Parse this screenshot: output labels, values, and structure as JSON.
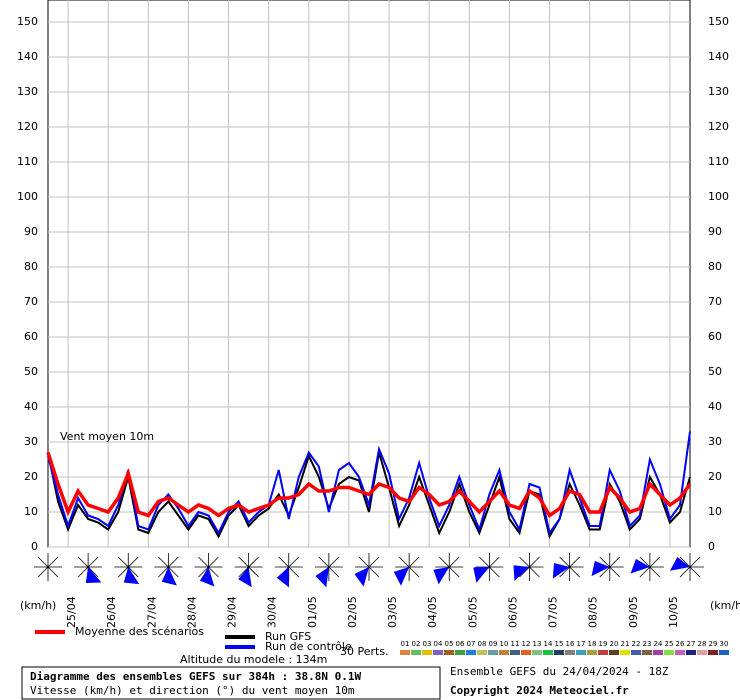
{
  "chart_data": {
    "type": "line",
    "annotation": "Vent moyen 10m",
    "y_unit": "(km/h)",
    "ylim": [
      0,
      150
    ],
    "yticks": [
      0,
      10,
      20,
      30,
      40,
      50,
      60,
      70,
      80,
      90,
      100,
      110,
      120,
      130,
      140,
      150
    ],
    "grid": true,
    "categories": [
      null,
      null,
      "25/04",
      null,
      null,
      null,
      "26/04",
      null,
      null,
      null,
      "27/04",
      null,
      null,
      null,
      "28/04",
      null,
      null,
      null,
      "29/04",
      null,
      null,
      null,
      "30/04",
      null,
      null,
      null,
      "01/05",
      null,
      null,
      null,
      "02/05",
      null,
      null,
      null,
      "03/05",
      null,
      null,
      null,
      "04/05",
      null,
      null,
      null,
      "05/05",
      null,
      null,
      null,
      "06/05",
      null,
      null,
      null,
      "07/05",
      null,
      null,
      null,
      "08/05",
      null,
      null,
      null,
      "09/05",
      null,
      null,
      null,
      "10/05",
      null,
      null
    ],
    "series": [
      {
        "name": "Run GFS",
        "color": "#000000",
        "values": [
          27,
          13,
          5,
          12,
          8,
          7,
          5,
          10,
          20,
          5,
          4,
          10,
          13,
          9,
          5,
          9,
          8,
          3,
          9,
          12,
          6,
          9,
          11,
          15,
          9,
          17,
          26,
          20,
          11,
          18,
          20,
          19,
          10,
          27,
          17,
          6,
          12,
          20,
          12,
          4,
          10,
          18,
          10,
          4,
          12,
          20,
          8,
          4,
          16,
          15,
          3,
          8,
          18,
          12,
          5,
          5,
          18,
          13,
          5,
          8,
          20,
          15,
          7,
          10,
          20
        ]
      },
      {
        "name": "Run de contrôle",
        "color": "#0000ff",
        "values": [
          26,
          15,
          6,
          14,
          9,
          8,
          6,
          12,
          22,
          6,
          5,
          12,
          15,
          11,
          6,
          10,
          9,
          4,
          10,
          13,
          7,
          10,
          12,
          22,
          8,
          20,
          27,
          23,
          10,
          22,
          24,
          20,
          12,
          28,
          21,
          8,
          14,
          24,
          14,
          6,
          12,
          20,
          12,
          5,
          15,
          22,
          10,
          5,
          18,
          17,
          4,
          8,
          22,
          14,
          6,
          6,
          22,
          16,
          6,
          9,
          25,
          18,
          8,
          12,
          33
        ]
      },
      {
        "name": "Moyenne des scénarios",
        "color": "#ff0000",
        "values": [
          27,
          18,
          10,
          16,
          12,
          11,
          10,
          14,
          21,
          10,
          9,
          13,
          14,
          12,
          10,
          12,
          11,
          9,
          11,
          12,
          10,
          11,
          12,
          14,
          14,
          15,
          18,
          16,
          16,
          17,
          17,
          16,
          15,
          18,
          17,
          14,
          13,
          17,
          15,
          12,
          13,
          16,
          13,
          10,
          13,
          16,
          12,
          11,
          16,
          14,
          9,
          11,
          16,
          15,
          10,
          10,
          17,
          14,
          10,
          11,
          18,
          15,
          12,
          14,
          18
        ]
      }
    ],
    "perturbations_title": "30 Perts.",
    "perturbations": [
      {
        "name": "01",
        "color": "#e08040"
      },
      {
        "name": "02",
        "color": "#60c060"
      },
      {
        "name": "03",
        "color": "#e0c000"
      },
      {
        "name": "04",
        "color": "#8060c0"
      },
      {
        "name": "05",
        "color": "#a06020"
      },
      {
        "name": "06",
        "color": "#40a040"
      },
      {
        "name": "07",
        "color": "#2080e0"
      },
      {
        "name": "08",
        "color": "#c0c060"
      },
      {
        "name": "09",
        "color": "#60a0a0"
      },
      {
        "name": "10",
        "color": "#c08040"
      },
      {
        "name": "11",
        "color": "#406080"
      },
      {
        "name": "12",
        "color": "#e06020"
      },
      {
        "name": "13",
        "color": "#80c080"
      },
      {
        "name": "14",
        "color": "#20c040"
      },
      {
        "name": "15",
        "color": "#204060"
      },
      {
        "name": "16",
        "color": "#808080"
      },
      {
        "name": "17",
        "color": "#40a0c0"
      },
      {
        "name": "18",
        "color": "#a0a040"
      },
      {
        "name": "19",
        "color": "#c04040"
      },
      {
        "name": "20",
        "color": "#604020"
      },
      {
        "name": "21",
        "color": "#e0e000"
      },
      {
        "name": "22",
        "color": "#4060a0"
      },
      {
        "name": "23",
        "color": "#806040"
      },
      {
        "name": "24",
        "color": "#a040a0"
      },
      {
        "name": "25",
        "color": "#80e040"
      },
      {
        "name": "26",
        "color": "#c060c0"
      },
      {
        "name": "27",
        "color": "#202080"
      },
      {
        "name": "28",
        "color": "#e0a0a0"
      },
      {
        "name": "29",
        "color": "#802020"
      },
      {
        "name": "30",
        "color": "#2060c0"
      }
    ],
    "altitude": "Altitude du modele : 134m",
    "footer_title": "Diagramme des ensembles GEFS sur 384h : 38.8N 0.1W",
    "footer_subtitle": "Vitesse (km/h) et direction (°) du vent moyen 10m",
    "run_info": "Ensemble GEFS du 24/04/2024 - 18Z",
    "copyright": "Copyright 2024 Meteociel.fr"
  }
}
